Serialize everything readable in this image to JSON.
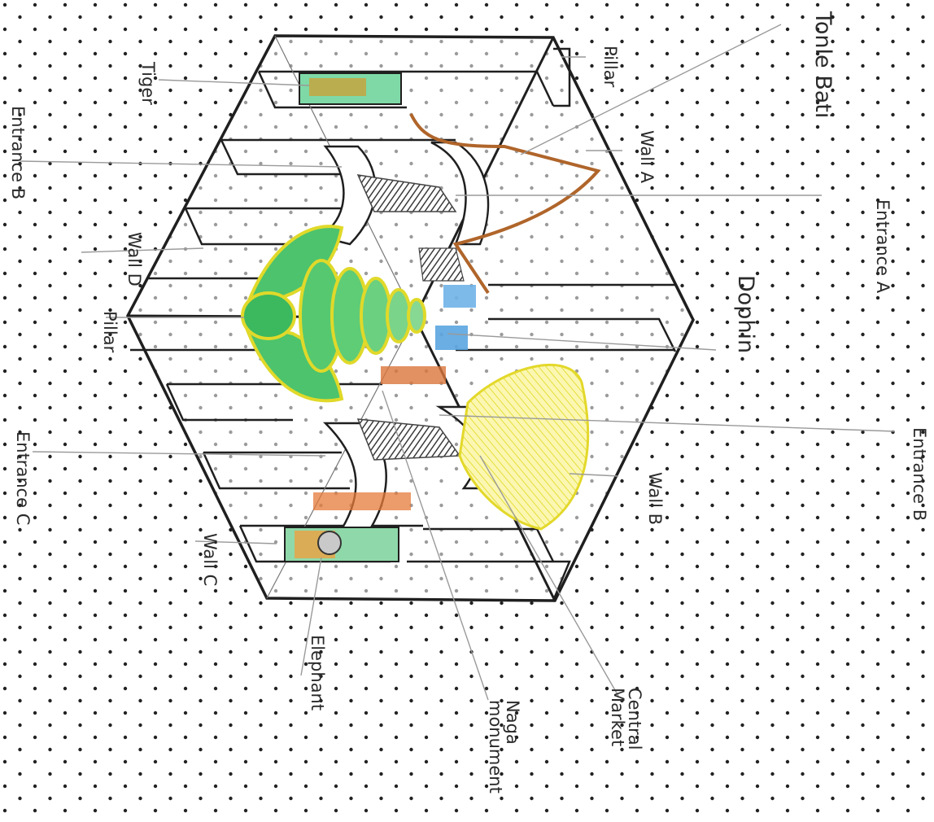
{
  "labels": {
    "title": "Tonle Bati",
    "tiger": "Tiger",
    "pillar_top": "Pillar",
    "pillar_left": "Pillar",
    "wall_a": "Wall A",
    "wall_b": "Wall B",
    "wall_c": "Wall C",
    "wall_d": "Wall D",
    "entrance_a": "Entrance A",
    "entrance_b_left": "Entrance B",
    "entrance_b_right": "Entrance B",
    "entrance_c": "Entrance C",
    "dophin": "Dophin",
    "elephant": "Elephant",
    "naga_monument": "Naga monument",
    "central_market": "Central Market"
  },
  "colors": {
    "ink": "#1f1f1f",
    "pencil": "#9a9a9a",
    "naga_green": "#3fbf63",
    "naga_yellow": "#e9e02e",
    "wall_a_brown": "#b0652a",
    "wall_b_yellow": "#f2ec6a",
    "shade_gray": "#555555",
    "dophin_blue": "#3e8ad6"
  }
}
